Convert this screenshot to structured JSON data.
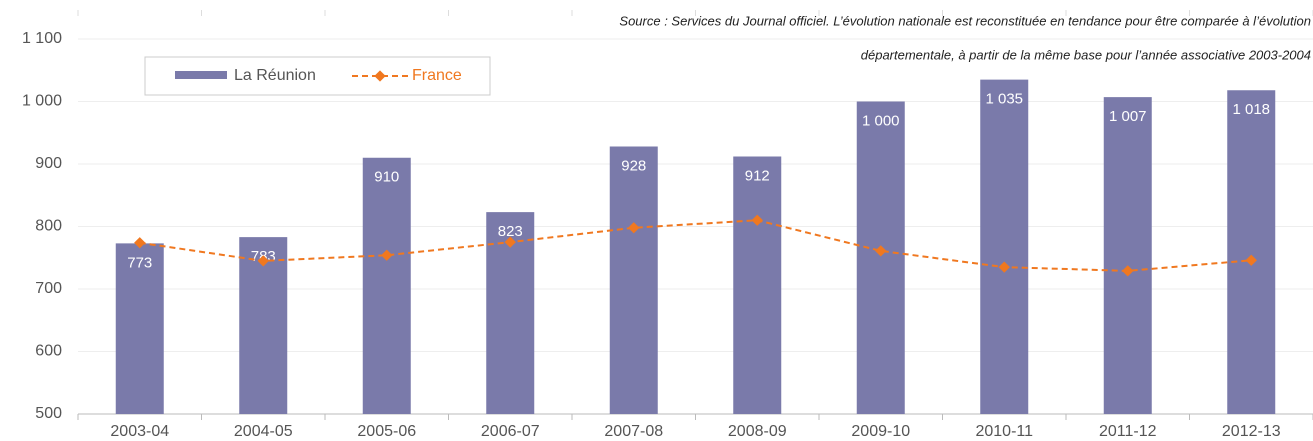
{
  "chart_data": {
    "type": "bar",
    "source": [
      "Source : Services du Journal officiel. L’évolution nationale est reconstituée en tendance pour être comparée à l’évolution",
      "départementale, à partir de la même base pour l’année associative 2003-2004"
    ],
    "categories": [
      "2003-04",
      "2004-05",
      "2005-06",
      "2006-07",
      "2007-08",
      "2008-09",
      "2009-10",
      "2010-11",
      "2011-12",
      "2012-13"
    ],
    "series": [
      {
        "name": "La Réunion",
        "type": "bar",
        "color": "#7a7aaa",
        "values": [
          773,
          783,
          910,
          823,
          928,
          912,
          1000,
          1035,
          1007,
          1018
        ],
        "value_labels": [
          "773",
          "783",
          "910",
          "823",
          "928",
          "912",
          "1 000",
          "1 035",
          "1 007",
          "1 018"
        ]
      },
      {
        "name": "France",
        "type": "line",
        "color": "#f07820",
        "values": [
          774,
          745,
          754,
          775,
          798,
          810,
          761,
          735,
          729,
          746
        ]
      }
    ],
    "ylim": [
      500,
      1100
    ],
    "yticks": [
      500,
      600,
      700,
      800,
      900,
      {
        "value": 1000,
        "label": "1 000"
      },
      {
        "value": 1100,
        "label": "1 100"
      }
    ],
    "grid": true
  }
}
